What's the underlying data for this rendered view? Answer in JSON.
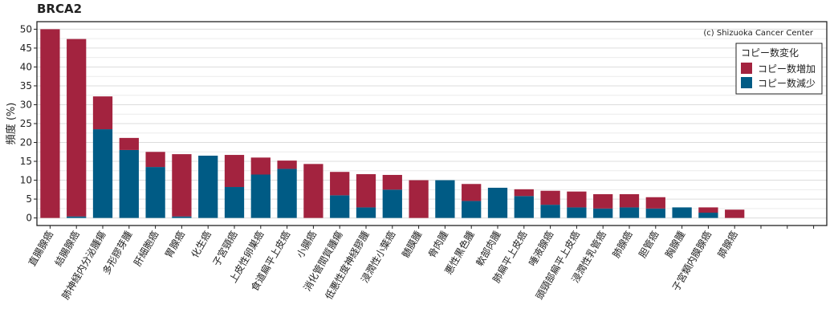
{
  "chart_data": {
    "type": "bar",
    "stacked": true,
    "title": "BRCA2",
    "ylabel": "頻度 (%)",
    "xlabel": "",
    "ylim": [
      -2,
      52
    ],
    "yticks": [
      0,
      5,
      10,
      15,
      20,
      25,
      30,
      35,
      40,
      45,
      50
    ],
    "grid": true,
    "credit": "(c) Shizuoka Cancer Center",
    "legend": {
      "title": "コピー数変化",
      "position": "top-right"
    },
    "categories": [
      "直腸腺癌",
      "結腸腺癌",
      "肺神経内分泌腫瘍",
      "多形膠芽腫",
      "肝細胞癌",
      "胃腺癌",
      "化生癌",
      "子宮頸癌",
      "上皮性卵巣癌",
      "食道扁平上皮癌",
      "小腸癌",
      "消化管間質腫瘍",
      "低悪性度神経膠腫",
      "浸潤性小葉癌",
      "髄膜腫",
      "骨肉腫",
      "悪性黒色腫",
      "軟部肉腫",
      "肺扁平上皮癌",
      "唾液腺癌",
      "頭頸部扁平上皮癌",
      "浸潤性乳管癌",
      "肺腺癌",
      "胆管癌",
      "胸腺腫",
      "子宮類内膜腺癌",
      "膵腺癌",
      "",
      "",
      ""
    ],
    "series": [
      {
        "name": "コピー数減少",
        "color": "#005b85",
        "values": [
          0,
          0.4,
          23.5,
          18,
          13.5,
          0.4,
          16.5,
          8.2,
          11.5,
          13,
          0,
          6,
          2.8,
          7.5,
          0,
          10,
          4.5,
          8,
          5.8,
          3.5,
          2.8,
          2.5,
          2.8,
          2.5,
          2.8,
          1.4,
          0,
          0,
          0,
          0
        ]
      },
      {
        "name": "コピー数増加",
        "color": "#a3233f",
        "values": [
          50,
          47,
          8.7,
          3.2,
          4,
          16.5,
          0,
          8.5,
          4.5,
          2.2,
          14.3,
          6.2,
          8.8,
          3.9,
          10,
          0,
          4.5,
          0,
          1.8,
          3.7,
          4.2,
          3.8,
          3.5,
          3,
          0,
          1.4,
          2.2,
          0,
          0,
          0
        ]
      }
    ]
  }
}
